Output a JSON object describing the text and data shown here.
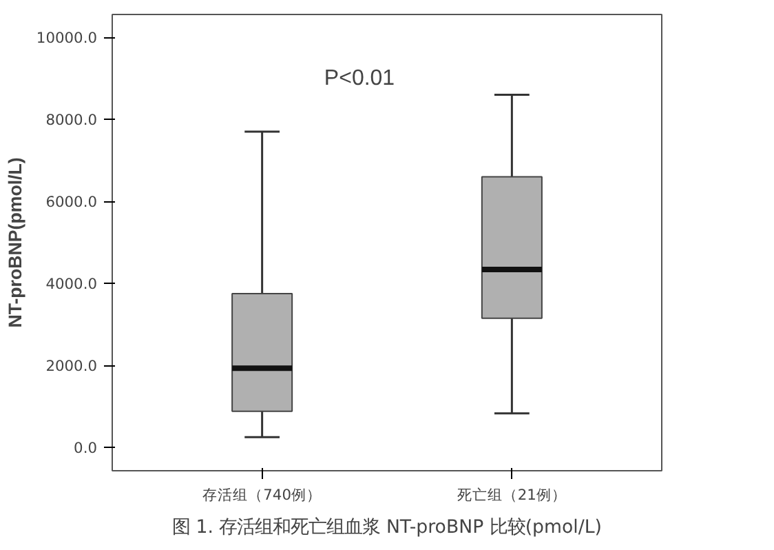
{
  "chart_data": {
    "type": "box",
    "ylabel": "NT-proBNP(pmol/L)",
    "categories": [
      "存活组（740例）",
      "死亡组（21例）"
    ],
    "boxes": [
      {
        "low": 250,
        "q1": 880,
        "median": 1930,
        "q3": 3750,
        "high": 7700
      },
      {
        "low": 830,
        "q1": 3150,
        "median": 4340,
        "q3": 6600,
        "high": 8600
      }
    ],
    "color": "#b0b0b0",
    "ylim": [
      -570,
      10560
    ],
    "yticks": [
      {
        "value": 0,
        "label": "0.0"
      },
      {
        "value": 2000,
        "label": "2000.0"
      },
      {
        "value": 4000,
        "label": "4000.0"
      },
      {
        "value": 6000,
        "label": "6000.0"
      },
      {
        "value": 8000,
        "label": "8000.0"
      },
      {
        "value": 10000,
        "label": "10000.0"
      }
    ],
    "grid": false,
    "annotations": [
      "P<0.01",
      "图 1. 存活组和死亡组血浆 NT-proBNP 比较(pmol/L)"
    ]
  }
}
